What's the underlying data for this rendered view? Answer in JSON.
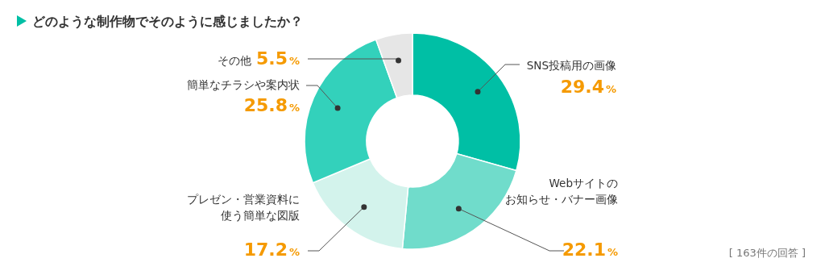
{
  "chart_data": {
    "type": "donut",
    "title": "どのような制作物でそのように感じましたか？",
    "categories": [
      "SNS投稿用の画像",
      "Webサイトのお知らせ・バナー画像",
      "プレゼン・営業資料に使う簡単な図版",
      "簡単なチラシや案内状",
      "その他"
    ],
    "values": [
      29.4,
      22.1,
      17.2,
      25.8,
      5.5
    ],
    "value_labels": [
      "29.4%",
      "22.1%",
      "17.2%",
      "25.8%",
      "5.5%"
    ],
    "colors": [
      "#00bfa5",
      "#70dccb",
      "#d3f3ec",
      "#33d1bb",
      "#e6e6e6"
    ],
    "annotations": [
      "[ 163件の回答 ]"
    ]
  }
}
